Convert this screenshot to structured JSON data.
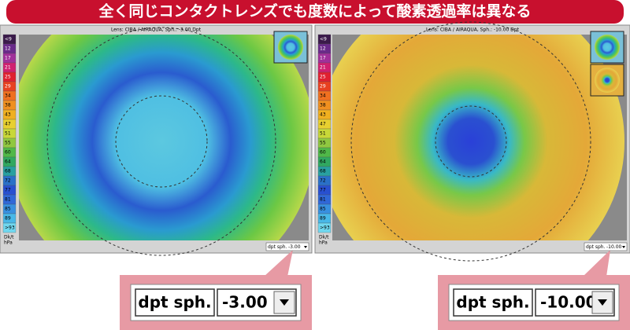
{
  "header": {
    "title": "全く同じコンタクトレンズでも度数によって酸素透過率は異なる"
  },
  "panels": [
    {
      "title": "Lens: CIBA / AIRAQUA, Sph.: -3.00 Dpt",
      "scale_labels": [
        "<9",
        "12",
        "17",
        "21",
        "25",
        "29",
        "34",
        "38",
        "43",
        "47",
        "51",
        "55",
        "60",
        "64",
        "68",
        "72",
        "77",
        "81",
        "85",
        "89",
        ">93"
      ],
      "scale_unit": [
        "Dk/t",
        "hPa"
      ],
      "dropdown": {
        "label": "dpt sph.",
        "value": "-3.00"
      }
    },
    {
      "title": "Lens: CIBA / AIRAQUA, Sph.: -10.00 Dpt",
      "scale_labels": [
        "<9",
        "12",
        "17",
        "21",
        "25",
        "29",
        "34",
        "38",
        "43",
        "47",
        "51",
        "55",
        "60",
        "64",
        "68",
        "72",
        "77",
        "81",
        "85",
        "89",
        ">93"
      ],
      "scale_unit": [
        "Dk/t",
        "hPa"
      ],
      "dropdown": {
        "label": "dpt sph.",
        "value": "-10.00"
      }
    }
  ],
  "callouts": [
    {
      "label": "dpt sph.",
      "value": "-3.00"
    },
    {
      "label": "dpt sph.",
      "value": "-10.00"
    }
  ]
}
